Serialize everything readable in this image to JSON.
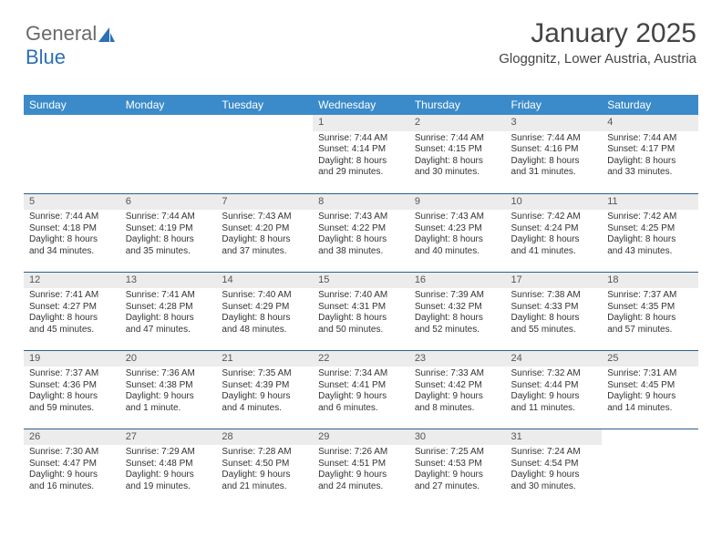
{
  "logo": {
    "text1": "General",
    "text2": "Blue"
  },
  "title": {
    "month": "January 2025",
    "location": "Gloggnitz, Lower Austria, Austria"
  },
  "colors": {
    "header_bg": "#3b8bca",
    "header_fg": "#ffffff",
    "daynum_bg": "#ececec",
    "row_border": "#2e5e8a",
    "logo_gray": "#6a6a6a",
    "logo_blue": "#2d6fb5"
  },
  "headers": [
    "Sunday",
    "Monday",
    "Tuesday",
    "Wednesday",
    "Thursday",
    "Friday",
    "Saturday"
  ],
  "weeks": [
    [
      null,
      null,
      null,
      {
        "n": "1",
        "sr": "7:44 AM",
        "ss": "4:14 PM",
        "dl": "8 hours and 29 minutes."
      },
      {
        "n": "2",
        "sr": "7:44 AM",
        "ss": "4:15 PM",
        "dl": "8 hours and 30 minutes."
      },
      {
        "n": "3",
        "sr": "7:44 AM",
        "ss": "4:16 PM",
        "dl": "8 hours and 31 minutes."
      },
      {
        "n": "4",
        "sr": "7:44 AM",
        "ss": "4:17 PM",
        "dl": "8 hours and 33 minutes."
      }
    ],
    [
      {
        "n": "5",
        "sr": "7:44 AM",
        "ss": "4:18 PM",
        "dl": "8 hours and 34 minutes."
      },
      {
        "n": "6",
        "sr": "7:44 AM",
        "ss": "4:19 PM",
        "dl": "8 hours and 35 minutes."
      },
      {
        "n": "7",
        "sr": "7:43 AM",
        "ss": "4:20 PM",
        "dl": "8 hours and 37 minutes."
      },
      {
        "n": "8",
        "sr": "7:43 AM",
        "ss": "4:22 PM",
        "dl": "8 hours and 38 minutes."
      },
      {
        "n": "9",
        "sr": "7:43 AM",
        "ss": "4:23 PM",
        "dl": "8 hours and 40 minutes."
      },
      {
        "n": "10",
        "sr": "7:42 AM",
        "ss": "4:24 PM",
        "dl": "8 hours and 41 minutes."
      },
      {
        "n": "11",
        "sr": "7:42 AM",
        "ss": "4:25 PM",
        "dl": "8 hours and 43 minutes."
      }
    ],
    [
      {
        "n": "12",
        "sr": "7:41 AM",
        "ss": "4:27 PM",
        "dl": "8 hours and 45 minutes."
      },
      {
        "n": "13",
        "sr": "7:41 AM",
        "ss": "4:28 PM",
        "dl": "8 hours and 47 minutes."
      },
      {
        "n": "14",
        "sr": "7:40 AM",
        "ss": "4:29 PM",
        "dl": "8 hours and 48 minutes."
      },
      {
        "n": "15",
        "sr": "7:40 AM",
        "ss": "4:31 PM",
        "dl": "8 hours and 50 minutes."
      },
      {
        "n": "16",
        "sr": "7:39 AM",
        "ss": "4:32 PM",
        "dl": "8 hours and 52 minutes."
      },
      {
        "n": "17",
        "sr": "7:38 AM",
        "ss": "4:33 PM",
        "dl": "8 hours and 55 minutes."
      },
      {
        "n": "18",
        "sr": "7:37 AM",
        "ss": "4:35 PM",
        "dl": "8 hours and 57 minutes."
      }
    ],
    [
      {
        "n": "19",
        "sr": "7:37 AM",
        "ss": "4:36 PM",
        "dl": "8 hours and 59 minutes."
      },
      {
        "n": "20",
        "sr": "7:36 AM",
        "ss": "4:38 PM",
        "dl": "9 hours and 1 minute."
      },
      {
        "n": "21",
        "sr": "7:35 AM",
        "ss": "4:39 PM",
        "dl": "9 hours and 4 minutes."
      },
      {
        "n": "22",
        "sr": "7:34 AM",
        "ss": "4:41 PM",
        "dl": "9 hours and 6 minutes."
      },
      {
        "n": "23",
        "sr": "7:33 AM",
        "ss": "4:42 PM",
        "dl": "9 hours and 8 minutes."
      },
      {
        "n": "24",
        "sr": "7:32 AM",
        "ss": "4:44 PM",
        "dl": "9 hours and 11 minutes."
      },
      {
        "n": "25",
        "sr": "7:31 AM",
        "ss": "4:45 PM",
        "dl": "9 hours and 14 minutes."
      }
    ],
    [
      {
        "n": "26",
        "sr": "7:30 AM",
        "ss": "4:47 PM",
        "dl": "9 hours and 16 minutes."
      },
      {
        "n": "27",
        "sr": "7:29 AM",
        "ss": "4:48 PM",
        "dl": "9 hours and 19 minutes."
      },
      {
        "n": "28",
        "sr": "7:28 AM",
        "ss": "4:50 PM",
        "dl": "9 hours and 21 minutes."
      },
      {
        "n": "29",
        "sr": "7:26 AM",
        "ss": "4:51 PM",
        "dl": "9 hours and 24 minutes."
      },
      {
        "n": "30",
        "sr": "7:25 AM",
        "ss": "4:53 PM",
        "dl": "9 hours and 27 minutes."
      },
      {
        "n": "31",
        "sr": "7:24 AM",
        "ss": "4:54 PM",
        "dl": "9 hours and 30 minutes."
      },
      null
    ]
  ],
  "labels": {
    "sunrise": "Sunrise:",
    "sunset": "Sunset:",
    "daylight": "Daylight:"
  }
}
